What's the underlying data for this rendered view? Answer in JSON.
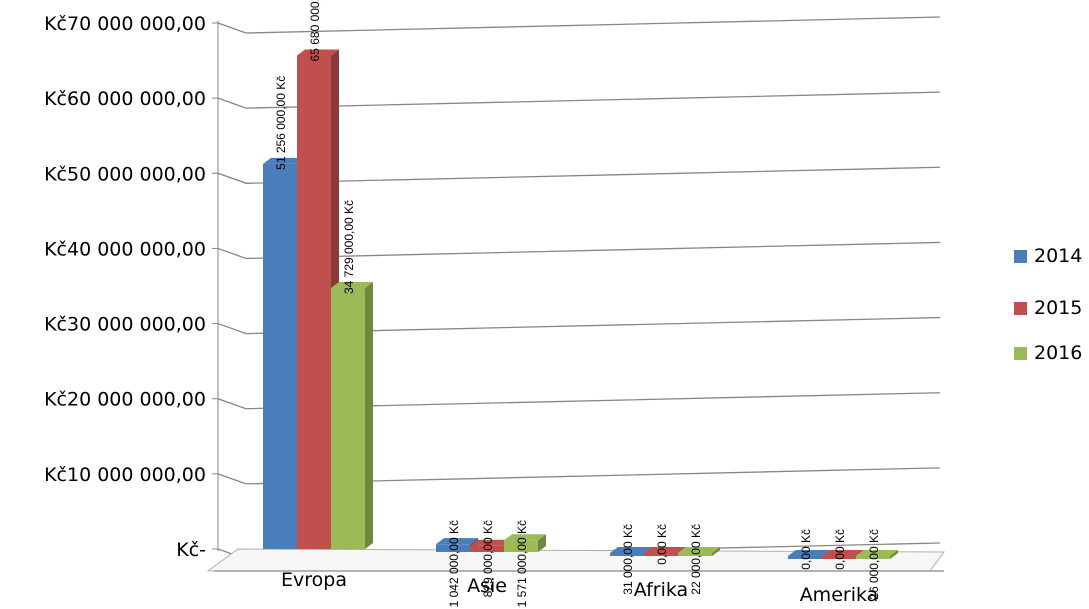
{
  "chart_data": {
    "type": "bar",
    "categories": [
      "Evropa",
      "Asie",
      "Afrika",
      "Amerika"
    ],
    "series": [
      {
        "name": "2014",
        "color": "#4a7ebb",
        "values": [
          51256000,
          1042000,
          31000,
          0
        ],
        "labels": [
          "51 256 000,00 Kč",
          "1 042 000,00 Kč",
          "31 000,00 Kč",
          "0,00 Kč"
        ]
      },
      {
        "name": "2015",
        "color": "#c0504d",
        "values": [
          65680000,
          829000,
          0,
          0
        ],
        "labels": [
          "65 680 000,00 Kč",
          "829 000,00 Kč",
          "0,00 Kč",
          "0,00 Kč"
        ]
      },
      {
        "name": "2016",
        "color": "#9bbb59",
        "values": [
          34729000,
          1571000,
          22000,
          26000
        ],
        "labels": [
          "34 729 000,00 Kč",
          "1 571 000,00 Kč",
          "22 000,00 Kč",
          "26 000,00 Kč"
        ]
      }
    ],
    "ytick_labels": [
      "Kč-",
      "Kč10 000 000,00",
      "Kč20 000 000,00",
      "Kč30 000 000,00",
      "Kč40 000 000,00",
      "Kč50 000 000,00",
      "Kč60 000 000,00",
      "Kč70 000 000,00"
    ],
    "ylim": [
      0,
      70000000
    ],
    "grid": true,
    "legend_position": "right",
    "style": "3d-clustered-column"
  }
}
